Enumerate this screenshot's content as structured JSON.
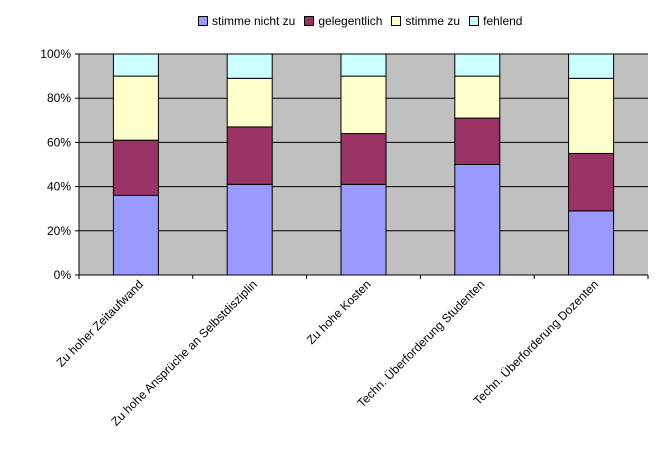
{
  "chart_data": {
    "type": "bar",
    "stacked": true,
    "percent": true,
    "categories": [
      "Zu hoher Zeitaufwand",
      "Zu hohe Ansprüche an Selbstdisziplin",
      "Zu hohe Kosten",
      "Techn. Überforderung Studenten",
      "Techn. Überforderung Dozenten"
    ],
    "series": [
      {
        "name": "stimme nicht zu",
        "color": "#9999ff",
        "values": [
          36,
          41,
          41,
          50,
          29
        ]
      },
      {
        "name": "gelegentlich",
        "color": "#993366",
        "values": [
          25,
          26,
          23,
          21,
          26
        ]
      },
      {
        "name": "stimme zu",
        "color": "#ffffcc",
        "values": [
          29,
          22,
          26,
          19,
          34
        ]
      },
      {
        "name": "fehlend",
        "color": "#ccffff",
        "values": [
          10,
          11,
          10,
          10,
          11
        ]
      }
    ],
    "yticks": [
      "0%",
      "20%",
      "40%",
      "60%",
      "80%",
      "100%"
    ],
    "ylim": [
      0,
      100
    ],
    "grid": true,
    "legend_position": "top",
    "plot_background": "#c0c0c0"
  }
}
